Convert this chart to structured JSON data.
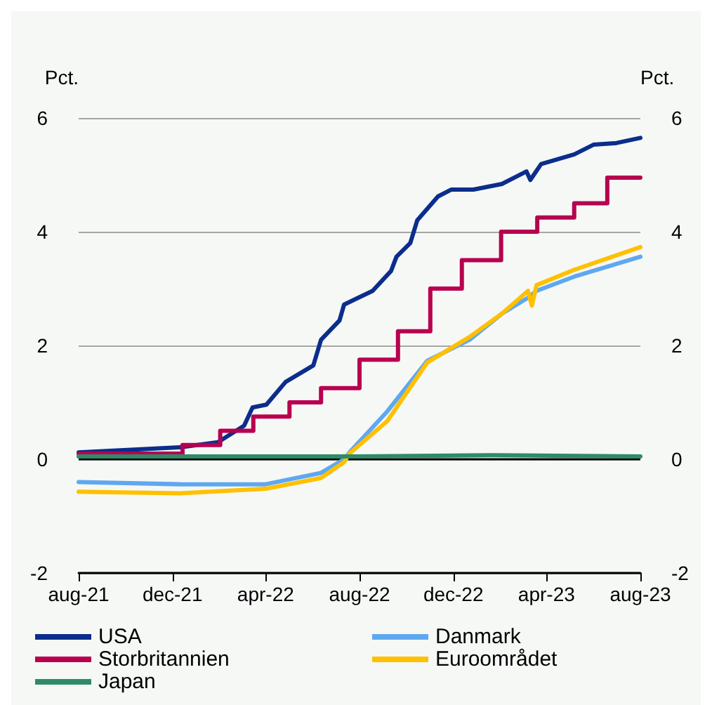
{
  "chart_data": {
    "type": "line",
    "ylabel": "Pct.",
    "y2label": "Pct.",
    "xlim": [
      "2021-08-01",
      "2023-08-01"
    ],
    "xticks": [
      {
        "value": "2021-08-01",
        "label": "aug-21"
      },
      {
        "value": "2021-12-01",
        "label": "dec-21"
      },
      {
        "value": "2022-04-01",
        "label": "apr-22"
      },
      {
        "value": "2022-08-01",
        "label": "aug-22"
      },
      {
        "value": "2022-12-01",
        "label": "dec-22"
      },
      {
        "value": "2023-04-01",
        "label": "apr-23"
      },
      {
        "value": "2023-08-01",
        "label": "aug-23"
      }
    ],
    "ylim": [
      -2,
      6
    ],
    "yticks": [
      -2,
      0,
      2,
      4,
      6
    ],
    "y2lim": [
      -2,
      6
    ],
    "y2ticks": [
      -2,
      0,
      2,
      4,
      6
    ],
    "grid": "y",
    "legend": "bottom",
    "line_style": "solid",
    "marker": "none",
    "ref_lines": [
      {
        "axis": "y",
        "value": 0,
        "color": "#000000"
      }
    ],
    "series": [
      {
        "name": "USA",
        "color": "#0b2d8c",
        "x": [
          "2021-08-01",
          "2021-12-11",
          "2022-01-29",
          "2022-03-04",
          "2022-03-15",
          "2022-04-02",
          "2022-04-27",
          "2022-06-02",
          "2022-06-12",
          "2022-07-06",
          "2022-07-12",
          "2022-08-18",
          "2022-09-11",
          "2022-09-18",
          "2022-10-06",
          "2022-10-15",
          "2022-11-11",
          "2022-11-28",
          "2022-12-27",
          "2023-02-02",
          "2023-03-06",
          "2023-03-11",
          "2023-03-25",
          "2023-05-07",
          "2023-06-01",
          "2023-07-01",
          "2023-08-01"
        ],
        "values": [
          0.12,
          0.21,
          0.3,
          0.59,
          0.91,
          0.96,
          1.36,
          1.65,
          2.1,
          2.44,
          2.72,
          2.96,
          3.31,
          3.56,
          3.8,
          4.2,
          4.62,
          4.74,
          4.74,
          4.84,
          5.06,
          4.91,
          5.19,
          5.36,
          5.53,
          5.56,
          5.65
        ]
      },
      {
        "name": "Danmark",
        "color": "#5fa8f0",
        "x": [
          "2021-08-01",
          "2021-12-11",
          "2022-04-01",
          "2022-06-12",
          "2022-07-12",
          "2022-07-19",
          "2022-09-06",
          "2022-10-28",
          "2022-12-22",
          "2023-02-03",
          "2023-03-08",
          "2023-03-19",
          "2023-05-07",
          "2023-08-01"
        ],
        "values": [
          -0.4,
          -0.44,
          -0.44,
          -0.24,
          0.0,
          0.12,
          0.84,
          1.73,
          2.1,
          2.57,
          2.84,
          2.96,
          3.21,
          3.56
        ]
      },
      {
        "name": "Storbritannien",
        "type": "step",
        "color": "#b8004f",
        "x": [
          "2021-08-01",
          "2021-12-14",
          "2022-02-01",
          "2022-03-16",
          "2022-05-02",
          "2022-06-12",
          "2022-08-01",
          "2022-09-20",
          "2022-11-01",
          "2022-12-12",
          "2023-02-01",
          "2023-03-20",
          "2023-05-07",
          "2023-06-19",
          "2023-08-01"
        ],
        "values": [
          0.1,
          0.25,
          0.5,
          0.75,
          1.0,
          1.25,
          1.75,
          2.25,
          3.0,
          3.5,
          4.0,
          4.25,
          4.5,
          4.95,
          4.95
        ]
      },
      {
        "name": "Euroområdet",
        "color": "#ffc000",
        "x": [
          "2021-08-01",
          "2021-12-11",
          "2022-04-01",
          "2022-06-12",
          "2022-07-12",
          "2022-07-19",
          "2022-09-06",
          "2022-10-28",
          "2022-12-22",
          "2023-02-03",
          "2023-03-08",
          "2023-03-13",
          "2023-03-19",
          "2023-05-07",
          "2023-08-01"
        ],
        "values": [
          -0.57,
          -0.6,
          -0.52,
          -0.33,
          -0.05,
          0.1,
          0.67,
          1.7,
          2.15,
          2.57,
          2.96,
          2.7,
          3.06,
          3.33,
          3.73
        ]
      },
      {
        "name": "Japan",
        "color": "#2e8b6a",
        "x": [
          "2021-08-01",
          "2022-08-01",
          "2023-01-20",
          "2023-08-01"
        ],
        "values": [
          0.05,
          0.05,
          0.07,
          0.05
        ]
      }
    ]
  }
}
